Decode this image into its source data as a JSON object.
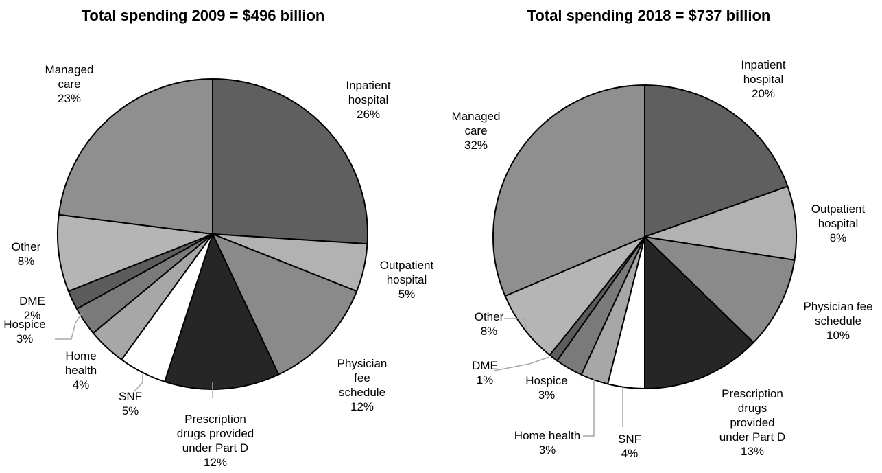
{
  "chart_data": [
    {
      "type": "pie",
      "title": "Total spending 2009 = $496 billion",
      "series": [
        {
          "name": "Inpatient hospital",
          "label": [
            "Inpatient",
            "hospital",
            "26%"
          ],
          "value": 26,
          "color": "#5f5f5f"
        },
        {
          "name": "Outpatient hospital",
          "label": [
            "Outpatient",
            "hospital",
            "5%"
          ],
          "value": 5,
          "color": "#b2b2b2"
        },
        {
          "name": "Physician fee schedule",
          "label": [
            "Physician",
            "fee",
            "schedule",
            "12%"
          ],
          "value": 12,
          "color": "#8a8a8a"
        },
        {
          "name": "Prescription drugs provided under Part D",
          "label": [
            "Prescription",
            "drugs provided",
            "under Part D",
            "12%"
          ],
          "value": 12,
          "color": "#262626"
        },
        {
          "name": "SNF",
          "label": [
            "SNF",
            "5%"
          ],
          "value": 5,
          "color": "#ffffff"
        },
        {
          "name": "Home health",
          "label": [
            "Home",
            "health",
            "4%"
          ],
          "value": 4,
          "color": "#a7a7a7"
        },
        {
          "name": "Hospice",
          "label": [
            "Hospice",
            "3%"
          ],
          "value": 3,
          "color": "#7a7a7a"
        },
        {
          "name": "DME",
          "label": [
            "DME",
            "2%"
          ],
          "value": 2,
          "color": "#5c5c5c"
        },
        {
          "name": "Other",
          "label": [
            "Other",
            "8%"
          ],
          "value": 8,
          "color": "#b5b5b5"
        },
        {
          "name": "Managed care",
          "label": [
            "Managed",
            "care",
            "23%"
          ],
          "value": 23,
          "color": "#8f8f8f"
        }
      ]
    },
    {
      "type": "pie",
      "title": "Total spending 2018 = $737 billion",
      "series": [
        {
          "name": "Inpatient hospital",
          "label": [
            "Inpatient",
            "hospital",
            "20%"
          ],
          "value": 20,
          "color": "#5f5f5f"
        },
        {
          "name": "Outpatient hospital",
          "label": [
            "Outpatient",
            "hospital",
            "8%"
          ],
          "value": 8,
          "color": "#b2b2b2"
        },
        {
          "name": "Physician fee schedule",
          "label": [
            "Physician fee",
            "schedule",
            "10%"
          ],
          "value": 10,
          "color": "#8a8a8a"
        },
        {
          "name": "Prescription drugs provided under Part D",
          "label": [
            "Prescription",
            "drugs",
            "provided",
            "under Part D",
            "13%"
          ],
          "value": 13,
          "color": "#262626"
        },
        {
          "name": "SNF",
          "label": [
            "SNF",
            "4%"
          ],
          "value": 4,
          "color": "#ffffff"
        },
        {
          "name": "Home health",
          "label": [
            "Home health",
            "3%"
          ],
          "value": 3,
          "color": "#a7a7a7"
        },
        {
          "name": "Hospice",
          "label": [
            "Hospice",
            "3%"
          ],
          "value": 3,
          "color": "#7a7a7a"
        },
        {
          "name": "DME",
          "label": [
            "DME",
            "1%"
          ],
          "value": 1,
          "color": "#5c5c5c"
        },
        {
          "name": "Other",
          "label": [
            "Other",
            "8%"
          ],
          "value": 8,
          "color": "#b5b5b5"
        },
        {
          "name": "Managed care",
          "label": [
            "Managed",
            "care",
            "32%"
          ],
          "value": 32,
          "color": "#8f8f8f"
        }
      ]
    }
  ]
}
